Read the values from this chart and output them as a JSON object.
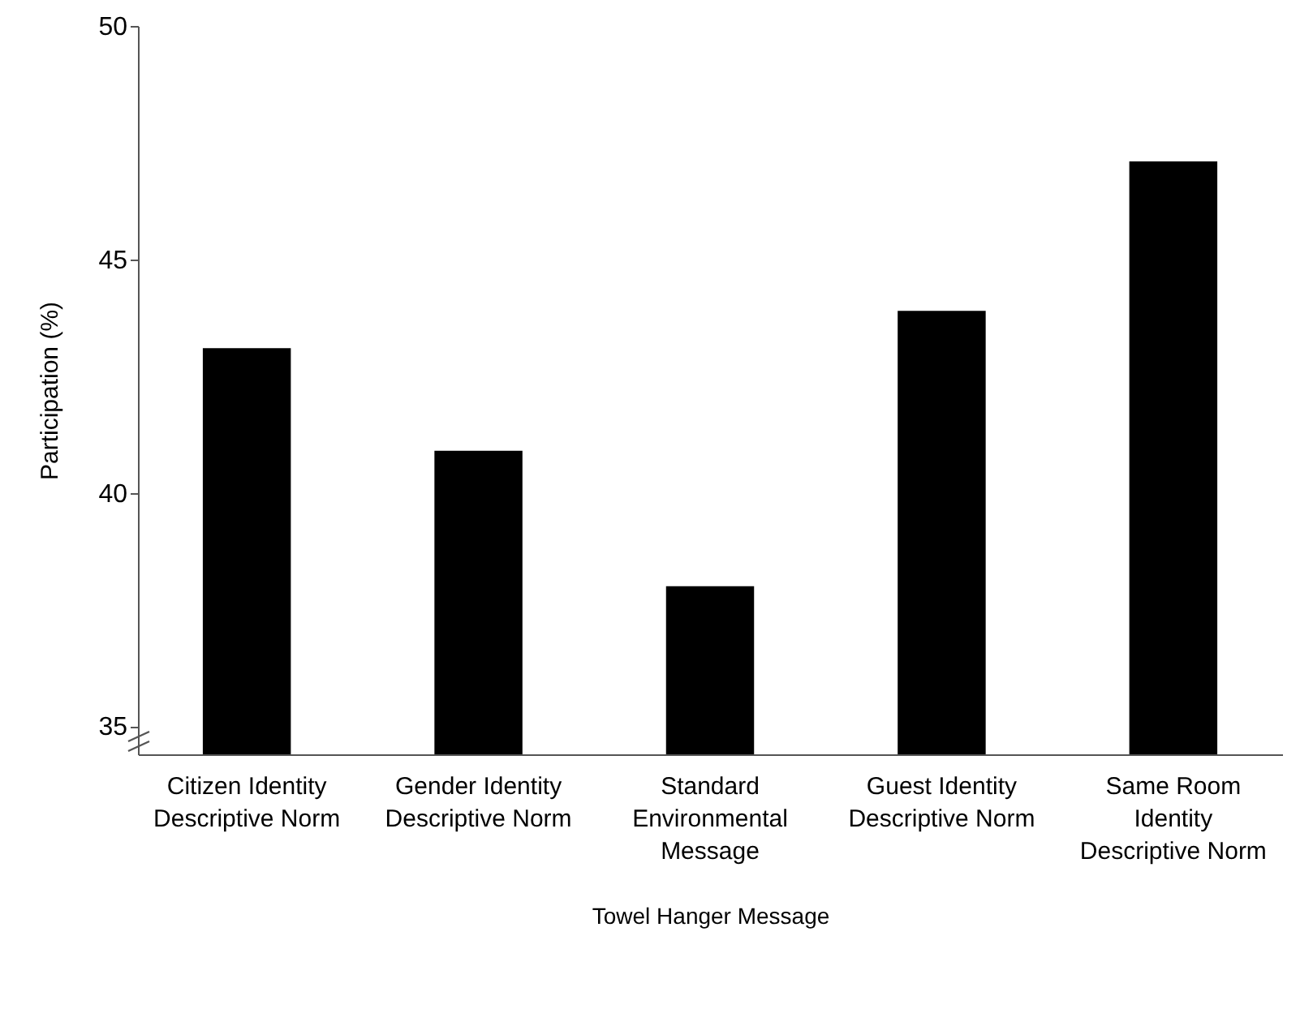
{
  "chart_data": {
    "type": "bar",
    "xlabel": "Towel Hanger Message",
    "ylabel": "Participation (%)",
    "categories": [
      "Citizen Identity Descriptive Norm",
      "Gender Identity Descriptive Norm",
      "Standard Environmental Message",
      "Guest Identity Descriptive Norm",
      "Same Room Identity Descriptive Norm"
    ],
    "values": [
      43.1,
      40.9,
      38.0,
      43.9,
      47.1
    ],
    "color": "#000000",
    "ylim": [
      34.4,
      50
    ],
    "yticks": [
      35,
      40,
      45,
      50
    ],
    "grid": false
  }
}
